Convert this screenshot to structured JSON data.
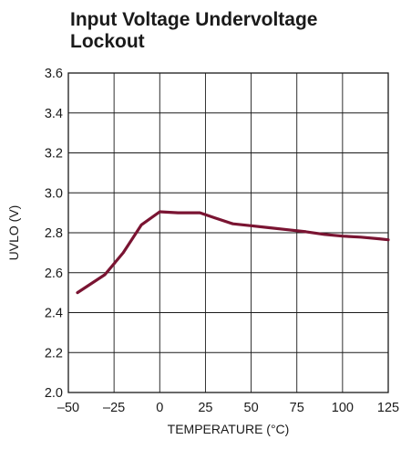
{
  "chart_data": {
    "type": "line",
    "title": "Input Voltage Undervoltage Lockout",
    "xlabel": "TEMPERATURE (°C)",
    "ylabel": "UVLO (V)",
    "xlim": [
      -50,
      125
    ],
    "ylim": [
      2.0,
      3.6
    ],
    "x_ticks": [
      -50,
      -25,
      0,
      25,
      50,
      75,
      100,
      125
    ],
    "x_tick_labels": [
      "–50",
      "–25",
      "0",
      "25",
      "50",
      "75",
      "100",
      "125"
    ],
    "y_ticks": [
      2.0,
      2.2,
      2.4,
      2.6,
      2.8,
      3.0,
      3.2,
      3.4,
      3.6
    ],
    "y_tick_labels": [
      "2.0",
      "2.2",
      "2.4",
      "2.6",
      "2.8",
      "3.0",
      "3.2",
      "3.4",
      "3.6"
    ],
    "grid": true,
    "series": [
      {
        "color": "#7a1432",
        "x": [
          -45,
          -30,
          -20,
          -10,
          0,
          10,
          22,
          30,
          40,
          50,
          60,
          70,
          80,
          90,
          100,
          110,
          120,
          125
        ],
        "y": [
          2.5,
          2.59,
          2.7,
          2.84,
          2.905,
          2.9,
          2.9,
          2.875,
          2.845,
          2.835,
          2.825,
          2.815,
          2.805,
          2.792,
          2.783,
          2.778,
          2.77,
          2.765
        ]
      }
    ]
  }
}
